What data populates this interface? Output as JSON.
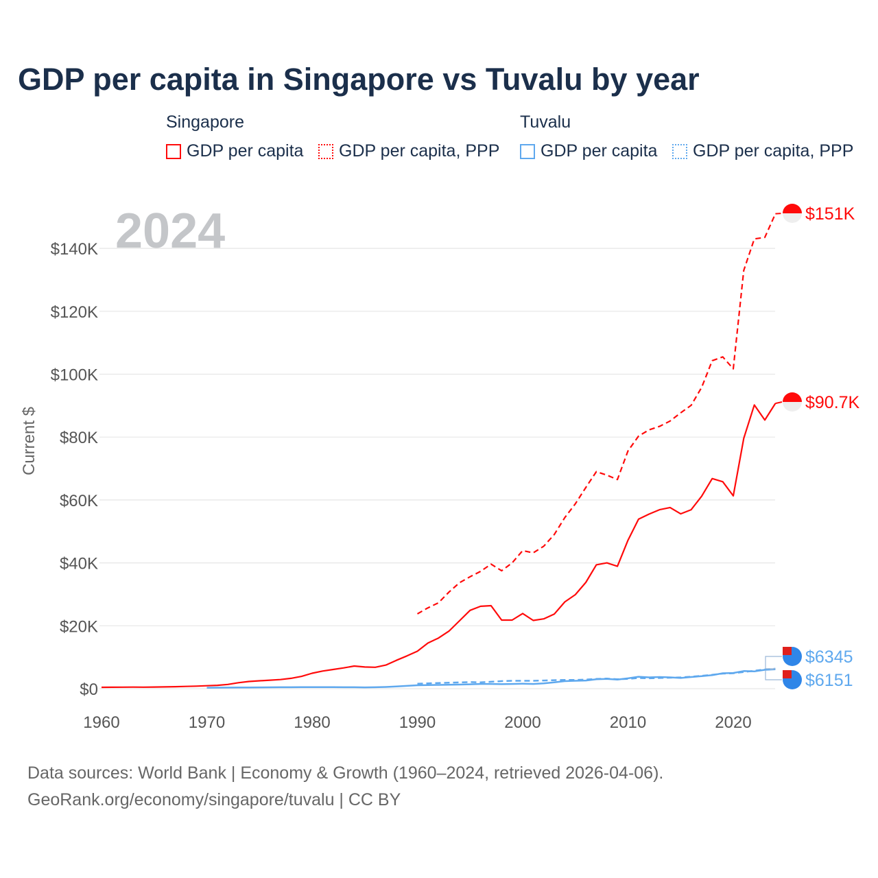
{
  "title": "GDP per capita in Singapore vs Tuvalu by year",
  "legend": {
    "groups": [
      {
        "name": "Singapore",
        "items": [
          "GDP per capita",
          "GDP per capita, PPP"
        ]
      },
      {
        "name": "Tuvalu",
        "items": [
          "GDP per capita",
          "GDP per capita, PPP"
        ]
      }
    ]
  },
  "year_label": "2024",
  "source": [
    "Data sources: World Bank | Economy & Growth (1960–2024, retrieved 2026-04-06).",
    "GeoRank.org/economy/singapore/tuvalu | CC BY"
  ],
  "colors": {
    "singapore": "#ff0a0a",
    "tuvalu": "#5ea8ee"
  },
  "chart_data": {
    "type": "line",
    "ylabel": "Current $",
    "ylim": [
      0,
      150000
    ],
    "xlim": [
      1960,
      2024
    ],
    "yticks": [
      0,
      20000,
      40000,
      60000,
      80000,
      100000,
      120000,
      140000
    ],
    "ytick_labels": [
      "$0",
      "$20K",
      "$40K",
      "$60K",
      "$80K",
      "$100K",
      "$120K",
      "$140K"
    ],
    "xticks": [
      1960,
      1970,
      1980,
      1990,
      2000,
      2010,
      2020
    ],
    "xtick_labels": [
      "1960",
      "1970",
      "1980",
      "1990",
      "2000",
      "2010",
      "2020"
    ],
    "series": [
      {
        "name": "Singapore GDP per capita",
        "country": "singapore",
        "dashed": false,
        "start": 1960,
        "end_label": "$90.7K",
        "values_k": [
          0.43,
          0.45,
          0.47,
          0.51,
          0.49,
          0.52,
          0.57,
          0.63,
          0.71,
          0.81,
          0.93,
          1.07,
          1.35,
          1.9,
          2.3,
          2.5,
          2.7,
          2.9,
          3.3,
          3.9,
          4.9,
          5.6,
          6.1,
          6.6,
          7.2,
          6.9,
          6.8,
          7.5,
          9.0,
          10.4,
          11.9,
          14.5,
          16.1,
          18.3,
          21.6,
          24.9,
          26.2,
          26.4,
          21.8,
          21.8,
          23.9,
          21.7,
          22.2,
          23.7,
          27.6,
          29.9,
          33.8,
          39.4,
          40.0,
          38.9,
          47.2,
          53.9,
          55.5,
          56.9,
          57.6,
          55.6,
          56.9,
          61.2,
          66.8,
          65.8,
          61.3,
          79.6,
          90.2,
          85.4,
          90.7
        ]
      },
      {
        "name": "Singapore GDP per capita, PPP",
        "country": "singapore",
        "dashed": true,
        "start": 1990,
        "end_label": "$151K",
        "values_k": [
          23.8,
          25.7,
          27.3,
          30.7,
          33.7,
          35.6,
          37.3,
          39.6,
          37.5,
          40,
          43.9,
          43.2,
          45.3,
          49,
          54.4,
          58.8,
          64,
          69,
          67.9,
          66.5,
          75.6,
          80.3,
          82.3,
          83.4,
          85.1,
          87.7,
          90.1,
          95.8,
          104.3,
          105.5,
          101.7,
          133,
          143,
          143.5,
          151
        ]
      },
      {
        "name": "Tuvalu GDP per capita",
        "country": "tuvalu",
        "dashed": false,
        "start": 1970,
        "end_label": "$6151",
        "values_k": [
          0.3,
          0.32,
          0.35,
          0.38,
          0.4,
          0.42,
          0.44,
          0.45,
          0.46,
          0.48,
          0.5,
          0.5,
          0.48,
          0.46,
          0.45,
          0.42,
          0.45,
          0.55,
          0.7,
          0.9,
          1.1,
          1.15,
          1.2,
          1.25,
          1.3,
          1.4,
          1.5,
          1.5,
          1.45,
          1.5,
          1.6,
          1.5,
          1.7,
          2.0,
          2.4,
          2.5,
          2.6,
          3.0,
          3.1,
          2.9,
          3.3,
          3.8,
          3.6,
          3.7,
          3.6,
          3.4,
          3.7,
          4.0,
          4.3,
          4.9,
          5.0,
          5.6,
          5.5,
          6.0,
          6.151
        ]
      },
      {
        "name": "Tuvalu GDP per capita, PPP",
        "country": "tuvalu",
        "dashed": true,
        "start": 1990,
        "end_label": "$6345",
        "values_k": [
          1.6,
          1.7,
          1.8,
          1.9,
          2.0,
          2.1,
          2.0,
          2.2,
          2.4,
          2.5,
          2.5,
          2.5,
          2.6,
          2.7,
          2.8,
          2.8,
          2.9,
          3.1,
          3.2,
          3.0,
          3.1,
          3.4,
          3.3,
          3.4,
          3.5,
          3.6,
          3.8,
          4.1,
          4.4,
          4.8,
          4.9,
          5.3,
          5.7,
          6.1,
          6.345
        ]
      }
    ]
  }
}
